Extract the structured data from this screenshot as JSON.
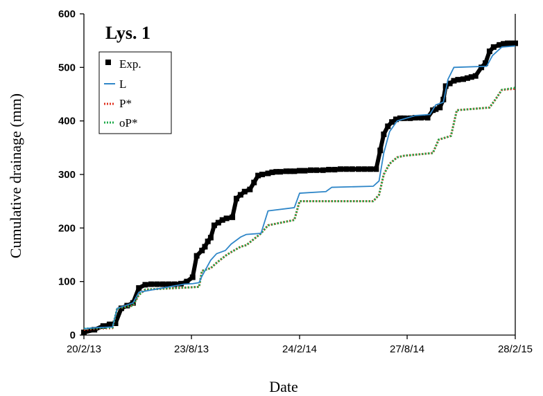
{
  "chart_data": {
    "type": "line",
    "panel_label": "Lys. 1",
    "xlabel": "Date",
    "ylabel": "Cumulative drainage (mm)",
    "ylim": [
      0,
      600
    ],
    "yticks": [
      0,
      100,
      200,
      300,
      400,
      500,
      600
    ],
    "xlim": [
      "2013-02-20",
      "2015-02-28"
    ],
    "xticks": [
      {
        "date": "2013-02-20",
        "label": "20/2/13"
      },
      {
        "date": "2013-08-23",
        "label": "23/8/13"
      },
      {
        "date": "2014-02-24",
        "label": "24/2/14"
      },
      {
        "date": "2014-08-27",
        "label": "27/8/14"
      },
      {
        "date": "2015-02-28",
        "label": "28/2/15"
      }
    ],
    "grid": false,
    "legend": "top-left",
    "colors": {
      "exp": "#000000",
      "L": "#2e86c8",
      "P": "#e0301e",
      "oP": "#1faa4a"
    },
    "series": [
      {
        "name": "Exp.",
        "style": "markers",
        "x": [
          "2013-02-20",
          "2013-03-10",
          "2013-03-25",
          "2013-04-05",
          "2013-04-15",
          "2013-04-25",
          "2013-05-05",
          "2013-05-15",
          "2013-05-25",
          "2013-06-05",
          "2013-06-15",
          "2013-06-25",
          "2013-07-05",
          "2013-07-15",
          "2013-07-25",
          "2013-08-05",
          "2013-08-15",
          "2013-08-25",
          "2013-09-01",
          "2013-09-10",
          "2013-09-15",
          "2013-09-20",
          "2013-09-25",
          "2013-10-01",
          "2013-10-08",
          "2013-10-15",
          "2013-10-22",
          "2013-11-01",
          "2013-11-08",
          "2013-11-15",
          "2013-11-22",
          "2013-12-01",
          "2013-12-08",
          "2013-12-15",
          "2013-12-22",
          "2014-01-01",
          "2014-01-08",
          "2014-01-15",
          "2014-01-22",
          "2014-02-01",
          "2014-02-08",
          "2014-02-15",
          "2014-02-24",
          "2014-03-05",
          "2014-03-15",
          "2014-03-25",
          "2014-04-05",
          "2014-04-15",
          "2014-04-25",
          "2014-05-05",
          "2014-05-15",
          "2014-05-25",
          "2014-06-05",
          "2014-06-15",
          "2014-06-25",
          "2014-07-05",
          "2014-07-12",
          "2014-07-18",
          "2014-07-25",
          "2014-08-01",
          "2014-08-08",
          "2014-08-15",
          "2014-08-22",
          "2014-09-01",
          "2014-09-10",
          "2014-09-20",
          "2014-10-01",
          "2014-10-10",
          "2014-10-15",
          "2014-10-22",
          "2014-10-28",
          "2014-11-01",
          "2014-11-08",
          "2014-11-15",
          "2014-11-22",
          "2014-12-01",
          "2014-12-08",
          "2014-12-15",
          "2014-12-22",
          "2015-01-01",
          "2015-01-08",
          "2015-01-15",
          "2015-01-22",
          "2015-02-01",
          "2015-02-08",
          "2015-02-15",
          "2015-02-22",
          "2015-02-28"
        ],
        "y": [
          5,
          10,
          17,
          20,
          22,
          50,
          55,
          60,
          88,
          94,
          95,
          95,
          95,
          95,
          95,
          96,
          100,
          108,
          148,
          158,
          165,
          175,
          182,
          205,
          210,
          215,
          218,
          220,
          255,
          262,
          268,
          272,
          285,
          298,
          300,
          302,
          304,
          305,
          305,
          306,
          306,
          306,
          307,
          307,
          308,
          308,
          308,
          309,
          309,
          310,
          310,
          310,
          310,
          310,
          310,
          310,
          345,
          375,
          390,
          398,
          403,
          405,
          405,
          405,
          406,
          406,
          406,
          420,
          422,
          425,
          440,
          465,
          470,
          475,
          477,
          478,
          480,
          482,
          484,
          500,
          508,
          530,
          538,
          542,
          544,
          545,
          545,
          545
        ]
      },
      {
        "name": "L",
        "style": "solid",
        "x": [
          "2013-02-20",
          "2013-03-15",
          "2013-04-10",
          "2013-04-18",
          "2013-05-15",
          "2013-05-25",
          "2013-08-10",
          "2013-08-25",
          "2013-09-05",
          "2013-09-10",
          "2013-09-25",
          "2013-10-05",
          "2013-10-20",
          "2013-10-30",
          "2013-11-15",
          "2013-11-25",
          "2013-12-20",
          "2014-01-01",
          "2014-02-15",
          "2014-02-24",
          "2014-04-10",
          "2014-04-20",
          "2014-06-30",
          "2014-07-10",
          "2014-07-18",
          "2014-07-28",
          "2014-08-10",
          "2014-09-10",
          "2014-10-05",
          "2014-10-15",
          "2014-10-28",
          "2014-11-05",
          "2014-11-15",
          "2015-01-10",
          "2015-01-20",
          "2015-02-05",
          "2015-02-28"
        ],
        "y": [
          12,
          14,
          15,
          50,
          60,
          80,
          95,
          96,
          98,
          110,
          140,
          152,
          158,
          170,
          183,
          188,
          190,
          232,
          238,
          265,
          268,
          276,
          278,
          288,
          340,
          380,
          400,
          410,
          412,
          430,
          435,
          478,
          500,
          502,
          522,
          538,
          540
        ]
      },
      {
        "name": "P*",
        "style": "dotted",
        "x": [
          "2013-02-20",
          "2013-03-15",
          "2013-04-10",
          "2013-04-18",
          "2013-05-15",
          "2013-05-25",
          "2013-06-05",
          "2013-09-05",
          "2013-09-10",
          "2013-09-25",
          "2013-10-05",
          "2013-10-20",
          "2013-10-30",
          "2013-11-15",
          "2013-11-25",
          "2013-12-20",
          "2014-01-01",
          "2014-02-15",
          "2014-02-24",
          "2014-06-30",
          "2014-07-10",
          "2014-07-18",
          "2014-07-28",
          "2014-08-10",
          "2014-08-22",
          "2014-10-10",
          "2014-10-20",
          "2014-11-10",
          "2014-11-20",
          "2015-01-15",
          "2015-01-25",
          "2015-02-05",
          "2015-02-28"
        ],
        "y": [
          10,
          12,
          13,
          50,
          55,
          75,
          85,
          90,
          120,
          125,
          135,
          148,
          155,
          165,
          168,
          190,
          205,
          215,
          250,
          250,
          262,
          300,
          320,
          332,
          335,
          340,
          365,
          372,
          420,
          425,
          440,
          458,
          460
        ]
      },
      {
        "name": "oP*",
        "style": "dotted",
        "x": [
          "2013-02-20",
          "2013-03-15",
          "2013-04-10",
          "2013-04-18",
          "2013-05-15",
          "2013-05-25",
          "2013-06-05",
          "2013-09-05",
          "2013-09-10",
          "2013-09-25",
          "2013-10-05",
          "2013-10-20",
          "2013-10-30",
          "2013-11-15",
          "2013-11-25",
          "2013-12-20",
          "2014-01-01",
          "2014-02-15",
          "2014-02-24",
          "2014-06-30",
          "2014-07-10",
          "2014-07-18",
          "2014-07-28",
          "2014-08-10",
          "2014-08-22",
          "2014-10-10",
          "2014-10-20",
          "2014-11-10",
          "2014-11-20",
          "2015-01-15",
          "2015-01-25",
          "2015-02-05",
          "2015-02-28"
        ],
        "y": [
          12,
          13,
          14,
          50,
          55,
          75,
          85,
          90,
          120,
          125,
          135,
          148,
          155,
          165,
          168,
          190,
          205,
          215,
          250,
          250,
          262,
          300,
          320,
          332,
          335,
          340,
          365,
          372,
          420,
          425,
          440,
          458,
          462
        ]
      }
    ]
  }
}
